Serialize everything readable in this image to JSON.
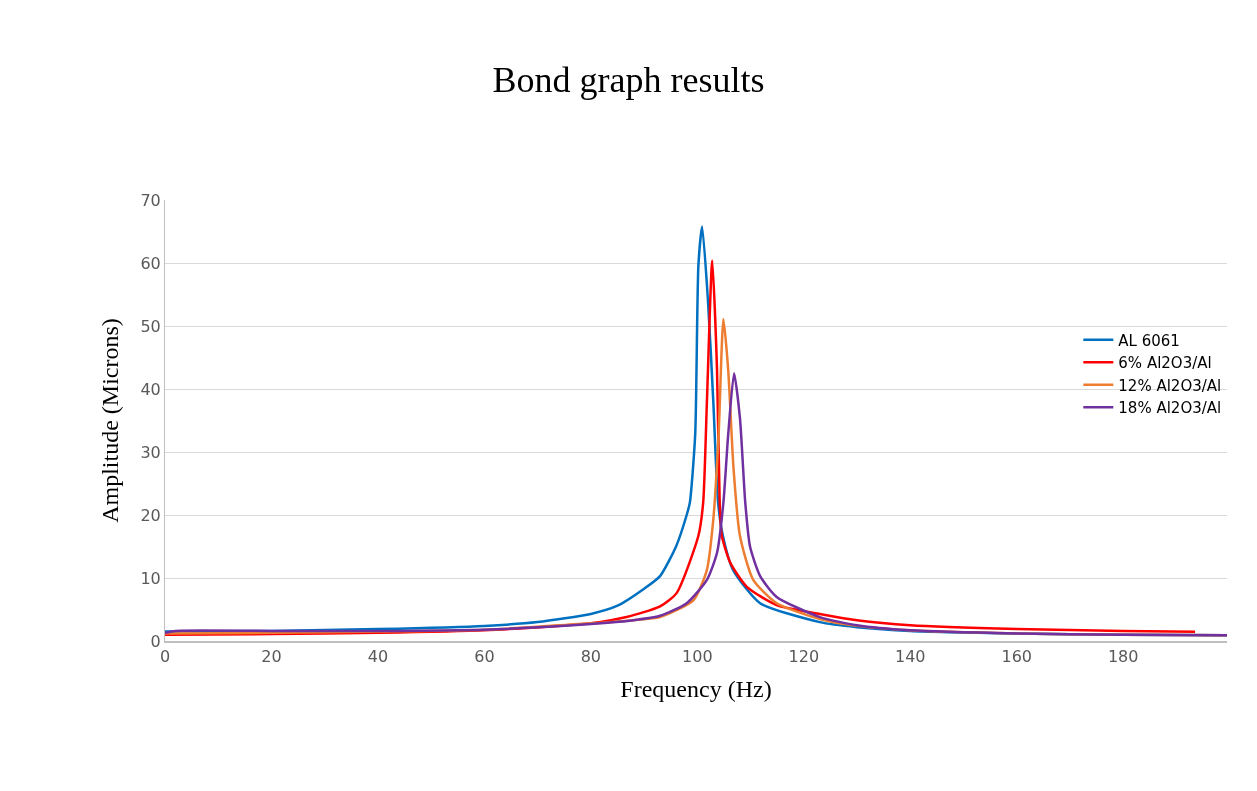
{
  "chart_data": {
    "type": "line",
    "title": "Bond graph results",
    "xlabel": "Frequency (Hz)",
    "ylabel": "Amplitude (Microns)",
    "xlim": [
      0,
      199.5
    ],
    "xticks": [
      0,
      20,
      40,
      60,
      80,
      100,
      120,
      140,
      160,
      180
    ],
    "ylim": [
      0,
      70
    ],
    "yticks": [
      0,
      10,
      20,
      30,
      40,
      50,
      60,
      70
    ],
    "grid": "y",
    "legend": "right",
    "marker": "none",
    "line_style": "solid",
    "series": [
      {
        "name": "AL 6061",
        "color": "#0070c0",
        "x": [
          0,
          20,
          40,
          60,
          70,
          80,
          85,
          90,
          93,
          96,
          98,
          98.6,
          99.6,
          100.2,
          100.9,
          102,
          103,
          103.9,
          104.8,
          106.7,
          111.8,
          123,
          130,
          140,
          160,
          180,
          199.5
        ],
        "values": [
          1.5,
          1.6,
          1.9,
          2.4,
          3.0,
          4.3,
          5.6,
          8.3,
          10.3,
          15,
          20,
          22,
          32.8,
          59.6,
          65.8,
          54,
          38,
          22,
          16.7,
          11.3,
          6,
          3,
          2.2,
          1.6,
          1.2,
          1.0,
          0.9
        ]
      },
      {
        "name": "6% Al2O3/Al",
        "color": "#ff0000",
        "x": [
          0,
          20,
          40,
          60,
          80,
          86.7,
          93,
          96.1,
          100.2,
          101.1,
          101.8,
          102.8,
          103.7,
          104.2,
          104.6,
          106.2,
          109.3,
          114.9,
          123,
          130,
          140,
          160,
          180,
          193.5
        ],
        "values": [
          1.0,
          1.1,
          1.3,
          1.7,
          2.8,
          3.8,
          5.5,
          7.6,
          16.7,
          22,
          38,
          60.4,
          43,
          22,
          16.7,
          12.4,
          8.6,
          5.7,
          4.3,
          3.3,
          2.5,
          1.9,
          1.6,
          1.45
        ]
      },
      {
        "name": "12% Al2O3/Al",
        "color": "#ed7d31",
        "x": [
          0,
          20,
          40,
          60,
          80,
          88,
          93,
          99.3,
          101.8,
          103,
          104,
          104.9,
          105.8,
          106.8,
          108,
          110.5,
          114.9,
          123,
          130,
          140,
          160,
          180,
          199.5
        ],
        "values": [
          1.2,
          1.3,
          1.5,
          1.8,
          2.8,
          3.3,
          3.8,
          6.5,
          11.3,
          19.3,
          32.8,
          51.1,
          43,
          27.4,
          16.7,
          9.7,
          6,
          3.5,
          2.4,
          1.7,
          1.2,
          1.0,
          0.9
        ]
      },
      {
        "name": "18% Al2O3/Al",
        "color": "#7030a0",
        "x": [
          0,
          2,
          20,
          40,
          60,
          80,
          88,
          93,
          98,
          101.8,
          103.7,
          104.9,
          105.8,
          106.9,
          108,
          109,
          109.9,
          111.8,
          114.9,
          123,
          130,
          140,
          160,
          180,
          199.5
        ],
        "values": [
          1.3,
          1.6,
          1.6,
          1.6,
          1.8,
          2.7,
          3.3,
          4,
          6,
          9.7,
          14,
          22,
          32.8,
          42.5,
          35.4,
          22,
          15,
          10.3,
          7,
          3.8,
          2.5,
          1.7,
          1.2,
          1.0,
          0.9
        ]
      }
    ]
  }
}
